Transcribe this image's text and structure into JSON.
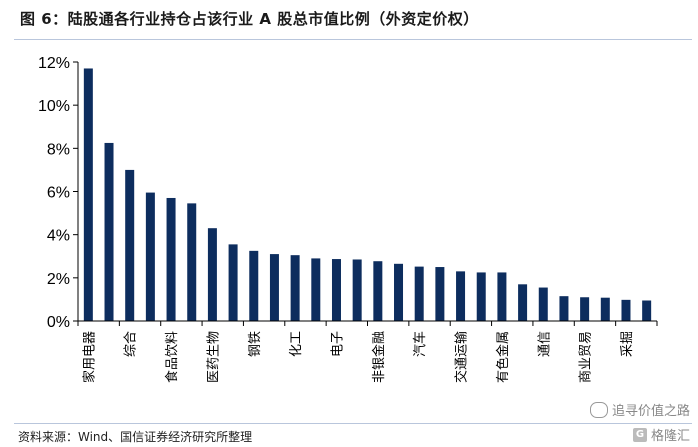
{
  "title": "图 6：陆股通各行业持仓占该行业 A 股总市值比例（外资定价权）",
  "source": "资料来源：Wind、国信证券经济研究所整理",
  "watermark": {
    "line1": "追寻价值之路",
    "line2": "格隆汇"
  },
  "colors": {
    "bar": "#0d2d5e",
    "axis": "#000000",
    "rule": "#b9c6dc"
  },
  "chart_data": {
    "type": "bar",
    "title": "",
    "xlabel": "",
    "ylabel": "",
    "ylim": [
      0,
      12
    ],
    "yticks": [
      0,
      2,
      4,
      6,
      8,
      10,
      12
    ],
    "ytick_labels": [
      "0%",
      "2%",
      "4%",
      "6%",
      "8%",
      "10%",
      "12%"
    ],
    "grid": false,
    "categories": [
      "家用电器",
      "",
      "综合",
      "",
      "食品饮料",
      "",
      "医药生物",
      "",
      "钢铁",
      "",
      "化工",
      "",
      "电子",
      "",
      "非银金融",
      "",
      "汽车",
      "",
      "交通运输",
      "",
      "有色金属",
      "",
      "通信",
      "",
      "商业贸易",
      "",
      "采掘",
      ""
    ],
    "values": [
      11.7,
      8.25,
      7.0,
      5.95,
      5.7,
      5.45,
      4.3,
      3.55,
      3.25,
      3.1,
      3.05,
      2.9,
      2.87,
      2.85,
      2.77,
      2.65,
      2.52,
      2.5,
      2.3,
      2.25,
      2.25,
      1.7,
      1.55,
      1.15,
      1.1,
      1.08,
      0.98,
      0.95
    ]
  }
}
